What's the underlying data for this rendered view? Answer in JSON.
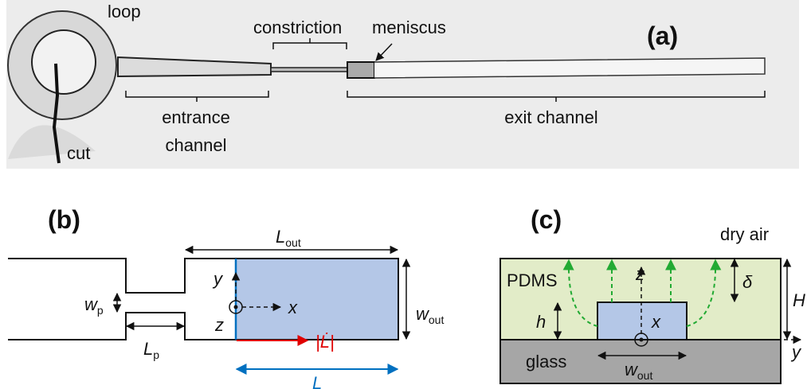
{
  "panel_a": {
    "label": "(a)",
    "loop": "loop",
    "cut": "cut",
    "constriction": "constriction",
    "meniscus": "meniscus",
    "entrance_channel": [
      "entrance",
      "channel"
    ],
    "exit_channel": "exit channel"
  },
  "panel_b": {
    "label": "(b)",
    "L_out": {
      "symbol": "L",
      "sub": "out"
    },
    "w_out": {
      "symbol": "w",
      "sub": "out"
    },
    "w_p": {
      "symbol": "w",
      "sub": "p"
    },
    "L_p": {
      "symbol": "L",
      "sub": "p"
    },
    "axis_x": "x",
    "axis_y": "y",
    "axis_z": "z",
    "velocity": "|L̇|",
    "length": "L"
  },
  "panel_c": {
    "label": "(c)",
    "dry_air": "dry air",
    "pdms": "PDMS",
    "glass": "glass",
    "axis_z": "z",
    "axis_x": "x",
    "axis_y": "y",
    "delta": "δ",
    "H": "H",
    "h": "h",
    "w_out": {
      "symbol": "w",
      "sub": "out"
    }
  }
}
